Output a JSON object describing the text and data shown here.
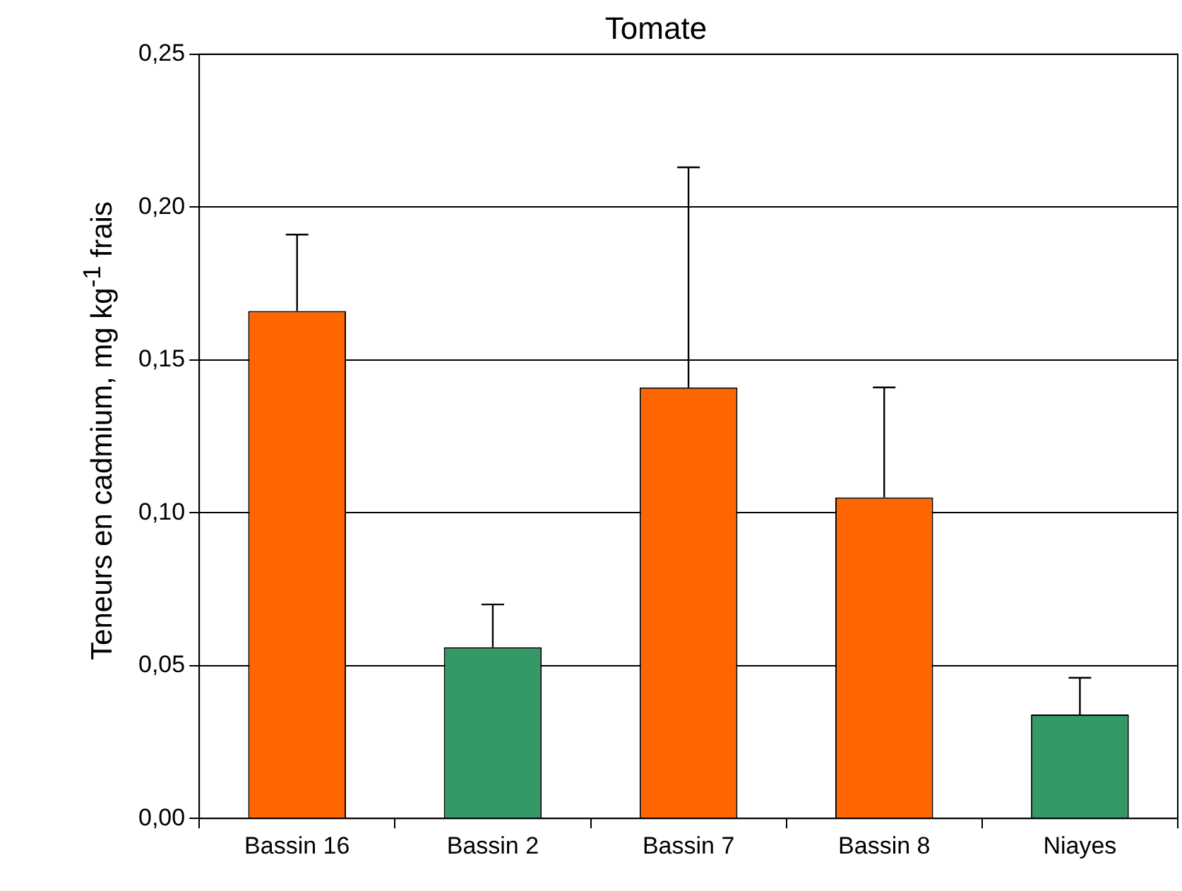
{
  "chart_data": {
    "type": "bar",
    "title": "Tomate",
    "ylabel": "Teneurs en cadmium, mg kg$^{-1}$ frais",
    "categories": [
      "Bassin 16",
      "Bassin 2",
      "Bassin 7",
      "Bassin 8",
      "Niayes"
    ],
    "values": [
      0.166,
      0.056,
      0.141,
      0.105,
      0.034
    ],
    "colors": [
      "#ff6600",
      "#339966",
      "#ff6600",
      "#ff6600",
      "#339966"
    ],
    "errors": [
      [
        0.166,
        0.191
      ],
      [
        0.056,
        0.07
      ],
      [
        0.141,
        0.213
      ],
      [
        0.105,
        0.141
      ],
      [
        0.034,
        0.046
      ]
    ],
    "ylim": [
      0,
      0.25
    ],
    "yticks": [
      {
        "value": 0,
        "label": "0,00"
      },
      {
        "value": 0.05,
        "label": "0,05"
      },
      {
        "value": 0.1,
        "label": "0,10"
      },
      {
        "value": 0.15,
        "label": "0,15"
      },
      {
        "value": 0.2,
        "label": "0,20"
      },
      {
        "value": 0.25,
        "label": "0,25"
      }
    ],
    "grid": "y",
    "legend": false
  }
}
